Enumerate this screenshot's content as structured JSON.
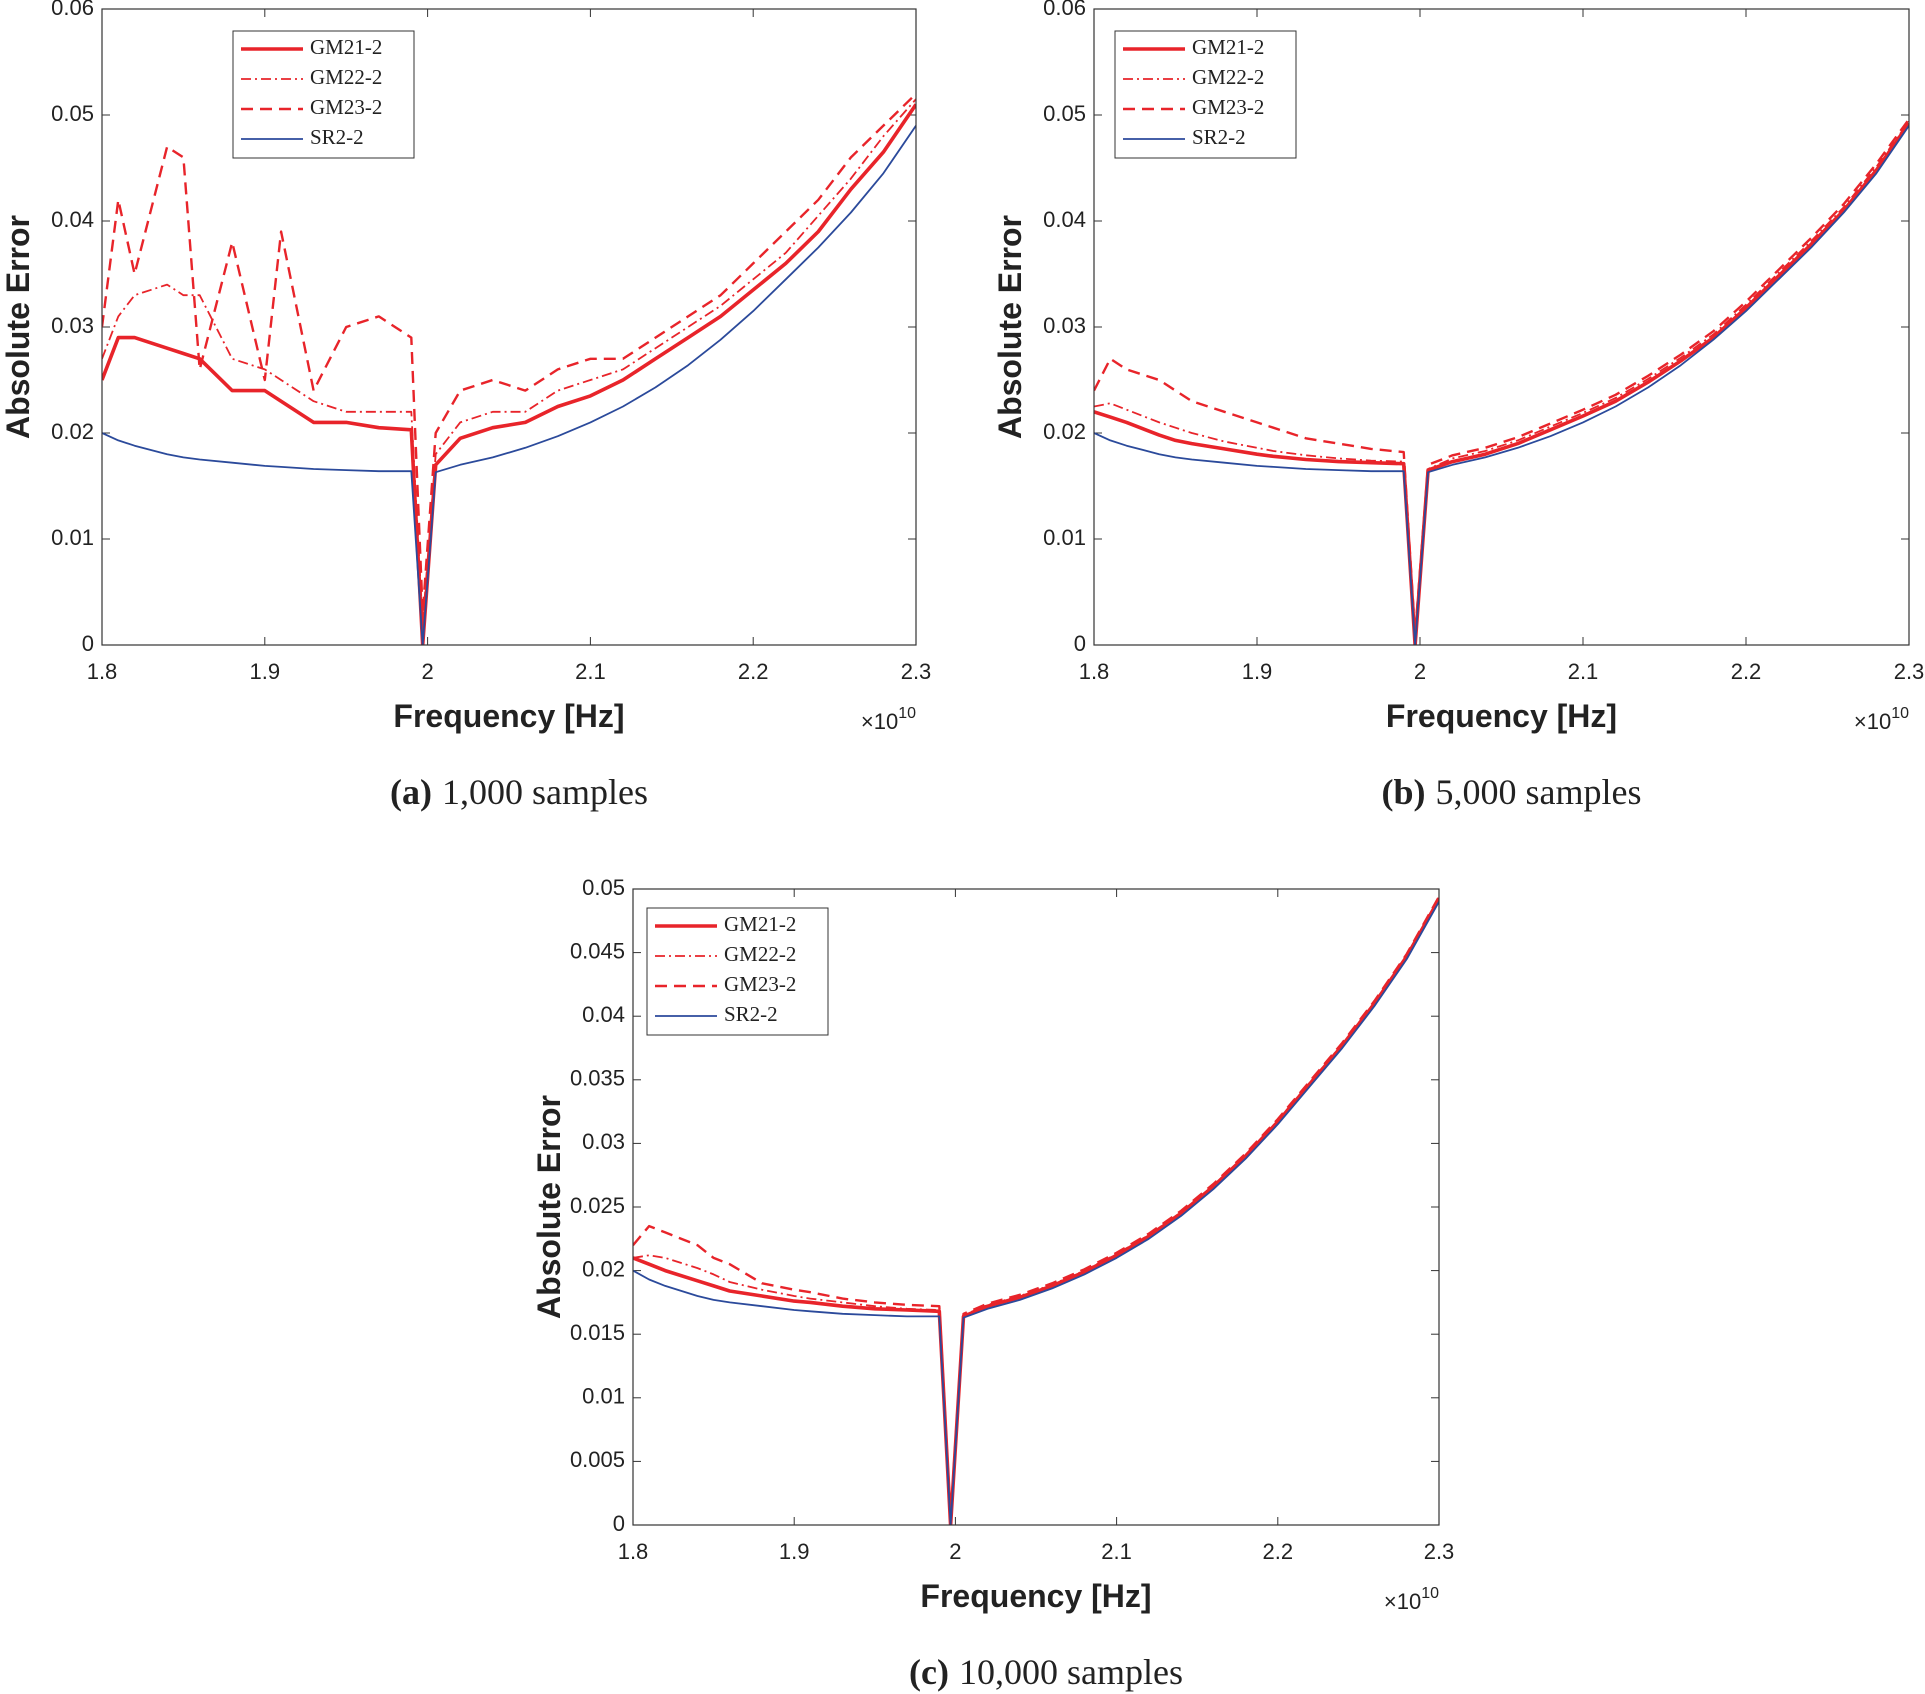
{
  "chart_data": [
    {
      "type": "line",
      "caption_label": "(a)",
      "caption": "1,000 samples",
      "xlabel": "Frequency [Hz]",
      "ylabel": "Absolute Error",
      "x_multiplier": {
        "base": "×10",
        "exponent": "10"
      },
      "xlim": [
        1.8,
        2.3
      ],
      "xticks": [
        1.8,
        1.9,
        2,
        2.1,
        2.2,
        2.3
      ],
      "ylim": [
        0,
        0.06
      ],
      "yticks": [
        0,
        0.01,
        0.02,
        0.03,
        0.04,
        0.05,
        0.06
      ],
      "legend": "upper left",
      "x": [
        1.8,
        1.81,
        1.82,
        1.84,
        1.85,
        1.86,
        1.88,
        1.9,
        1.91,
        1.93,
        1.95,
        1.97,
        1.99,
        1.997,
        2.005,
        2.02,
        2.04,
        2.06,
        2.08,
        2.1,
        2.12,
        2.14,
        2.16,
        2.18,
        2.2,
        2.22,
        2.24,
        2.26,
        2.28,
        2.3
      ],
      "series": [
        {
          "name": "GM21-2",
          "color": "#e8242a",
          "style": "solid",
          "width": 3,
          "values": [
            0.025,
            0.029,
            0.029,
            0.028,
            0.0275,
            0.027,
            0.024,
            0.024,
            0.023,
            0.021,
            0.021,
            0.0205,
            0.0203,
            0,
            0.017,
            0.0195,
            0.0205,
            0.021,
            0.0225,
            0.0235,
            0.025,
            0.027,
            0.029,
            0.031,
            0.0335,
            0.036,
            0.039,
            0.043,
            0.0465,
            0.051
          ]
        },
        {
          "name": "GM22-2",
          "color": "#e8242a",
          "style": "dashdot",
          "width": 1.5,
          "values": [
            0.027,
            0.031,
            0.033,
            0.034,
            0.033,
            0.033,
            0.027,
            0.026,
            0.025,
            0.023,
            0.022,
            0.022,
            0.022,
            0.002,
            0.018,
            0.021,
            0.022,
            0.022,
            0.024,
            0.025,
            0.026,
            0.028,
            0.03,
            0.032,
            0.0345,
            0.037,
            0.0405,
            0.044,
            0.048,
            0.0515
          ]
        },
        {
          "name": "GM23-2",
          "color": "#e8242a",
          "style": "dashed",
          "width": 2,
          "values": [
            0.03,
            0.042,
            0.035,
            0.047,
            0.046,
            0.026,
            0.038,
            0.025,
            0.039,
            0.024,
            0.03,
            0.031,
            0.029,
            0.003,
            0.02,
            0.024,
            0.025,
            0.024,
            0.026,
            0.027,
            0.027,
            0.029,
            0.031,
            0.033,
            0.036,
            0.039,
            0.042,
            0.046,
            0.049,
            0.052
          ]
        },
        {
          "name": "SR2-2",
          "color": "#2b4a9b",
          "style": "solid",
          "width": 1.5,
          "values": [
            0.02,
            0.0193,
            0.0188,
            0.018,
            0.0177,
            0.0175,
            0.0172,
            0.0169,
            0.0168,
            0.0166,
            0.0165,
            0.0164,
            0.0164,
            0,
            0.0163,
            0.017,
            0.0177,
            0.0186,
            0.0197,
            0.021,
            0.0225,
            0.0243,
            0.0264,
            0.0288,
            0.0315,
            0.0345,
            0.0375,
            0.0408,
            0.0445,
            0.049
          ]
        }
      ]
    },
    {
      "type": "line",
      "caption_label": "(b)",
      "caption": "5,000 samples",
      "xlabel": "Frequency [Hz]",
      "ylabel": "Absolute Error",
      "x_multiplier": {
        "base": "×10",
        "exponent": "10"
      },
      "xlim": [
        1.8,
        2.3
      ],
      "xticks": [
        1.8,
        1.9,
        2,
        2.1,
        2.2,
        2.3
      ],
      "ylim": [
        0,
        0.06
      ],
      "yticks": [
        0,
        0.01,
        0.02,
        0.03,
        0.04,
        0.05,
        0.06
      ],
      "legend": "upper left",
      "x": [
        1.8,
        1.81,
        1.82,
        1.84,
        1.85,
        1.86,
        1.88,
        1.9,
        1.91,
        1.93,
        1.95,
        1.97,
        1.99,
        1.997,
        2.005,
        2.02,
        2.04,
        2.06,
        2.08,
        2.1,
        2.12,
        2.14,
        2.16,
        2.18,
        2.2,
        2.22,
        2.24,
        2.26,
        2.28,
        2.3
      ],
      "series": [
        {
          "name": "GM21-2",
          "color": "#e8242a",
          "style": "solid",
          "width": 3,
          "values": [
            0.022,
            0.0215,
            0.021,
            0.0198,
            0.0193,
            0.019,
            0.0185,
            0.018,
            0.0178,
            0.0175,
            0.0173,
            0.0172,
            0.0171,
            0,
            0.0165,
            0.0173,
            0.018,
            0.019,
            0.0203,
            0.0216,
            0.023,
            0.0248,
            0.0268,
            0.029,
            0.0318,
            0.0348,
            0.0378,
            0.041,
            0.0448,
            0.0492
          ]
        },
        {
          "name": "GM22-2",
          "color": "#e8242a",
          "style": "dashdot",
          "width": 1.5,
          "values": [
            0.0225,
            0.0228,
            0.0222,
            0.021,
            0.0205,
            0.02,
            0.0192,
            0.0186,
            0.0183,
            0.0179,
            0.0176,
            0.0174,
            0.0173,
            0.0005,
            0.0166,
            0.0176,
            0.0183,
            0.0193,
            0.0206,
            0.0219,
            0.0233,
            0.0251,
            0.0271,
            0.0293,
            0.0321,
            0.0351,
            0.0381,
            0.0413,
            0.0451,
            0.0494
          ]
        },
        {
          "name": "GM23-2",
          "color": "#e8242a",
          "style": "dashed",
          "width": 2,
          "values": [
            0.024,
            0.027,
            0.026,
            0.025,
            0.024,
            0.023,
            0.022,
            0.021,
            0.0205,
            0.0195,
            0.019,
            0.0185,
            0.0182,
            0.001,
            0.017,
            0.0179,
            0.0186,
            0.0196,
            0.0209,
            0.0222,
            0.0236,
            0.0254,
            0.0274,
            0.0296,
            0.0324,
            0.0354,
            0.0384,
            0.0416,
            0.0454,
            0.0496
          ]
        },
        {
          "name": "SR2-2",
          "color": "#2b4a9b",
          "style": "solid",
          "width": 1.5,
          "values": [
            0.02,
            0.0193,
            0.0188,
            0.018,
            0.0177,
            0.0175,
            0.0172,
            0.0169,
            0.0168,
            0.0166,
            0.0165,
            0.0164,
            0.0164,
            0,
            0.0163,
            0.017,
            0.0177,
            0.0186,
            0.0197,
            0.021,
            0.0225,
            0.0243,
            0.0264,
            0.0288,
            0.0315,
            0.0345,
            0.0375,
            0.0408,
            0.0445,
            0.049
          ]
        }
      ]
    },
    {
      "type": "line",
      "caption_label": "(c)",
      "caption": "10,000 samples",
      "xlabel": "Frequency [Hz]",
      "ylabel": "Absolute Error",
      "x_multiplier": {
        "base": "×10",
        "exponent": "10"
      },
      "xlim": [
        1.8,
        2.3
      ],
      "xticks": [
        1.8,
        1.9,
        2,
        2.1,
        2.2,
        2.3
      ],
      "ylim": [
        0,
        0.05
      ],
      "yticks": [
        0,
        0.005,
        0.01,
        0.015,
        0.02,
        0.025,
        0.03,
        0.035,
        0.04,
        0.045,
        0.05
      ],
      "legend": "upper left",
      "x": [
        1.8,
        1.81,
        1.82,
        1.84,
        1.85,
        1.86,
        1.88,
        1.9,
        1.91,
        1.93,
        1.95,
        1.97,
        1.99,
        1.997,
        2.005,
        2.02,
        2.04,
        2.06,
        2.08,
        2.1,
        2.12,
        2.14,
        2.16,
        2.18,
        2.2,
        2.22,
        2.24,
        2.26,
        2.28,
        2.3
      ],
      "series": [
        {
          "name": "GM21-2",
          "color": "#e8242a",
          "style": "solid",
          "width": 3,
          "values": [
            0.021,
            0.0205,
            0.02,
            0.0192,
            0.0188,
            0.0184,
            0.018,
            0.0176,
            0.0175,
            0.0172,
            0.017,
            0.0169,
            0.0168,
            0,
            0.0164,
            0.0172,
            0.0179,
            0.0188,
            0.0199,
            0.0212,
            0.0227,
            0.0245,
            0.0266,
            0.029,
            0.0317,
            0.0347,
            0.0377,
            0.041,
            0.0447,
            0.0492
          ]
        },
        {
          "name": "GM22-2",
          "color": "#e8242a",
          "style": "dashdot",
          "width": 1.5,
          "values": [
            0.021,
            0.0212,
            0.021,
            0.0202,
            0.0197,
            0.0191,
            0.0185,
            0.018,
            0.0178,
            0.0175,
            0.0172,
            0.017,
            0.0169,
            0.0003,
            0.0165,
            0.0173,
            0.018,
            0.0189,
            0.02,
            0.0213,
            0.0228,
            0.0246,
            0.0267,
            0.0291,
            0.0318,
            0.0348,
            0.0378,
            0.0411,
            0.0448,
            0.0493
          ]
        },
        {
          "name": "GM23-2",
          "color": "#e8242a",
          "style": "dashed",
          "width": 2,
          "values": [
            0.022,
            0.0235,
            0.023,
            0.022,
            0.021,
            0.0205,
            0.019,
            0.0185,
            0.0183,
            0.0178,
            0.0175,
            0.0173,
            0.0172,
            0.0005,
            0.0166,
            0.0174,
            0.0181,
            0.019,
            0.0201,
            0.0214,
            0.0229,
            0.0247,
            0.0268,
            0.0292,
            0.0319,
            0.0349,
            0.0379,
            0.0412,
            0.0449,
            0.0494
          ]
        },
        {
          "name": "SR2-2",
          "color": "#2b4a9b",
          "style": "solid",
          "width": 1.5,
          "values": [
            0.02,
            0.0193,
            0.0188,
            0.018,
            0.0177,
            0.0175,
            0.0172,
            0.0169,
            0.0168,
            0.0166,
            0.0165,
            0.0164,
            0.0164,
            0,
            0.0163,
            0.017,
            0.0177,
            0.0186,
            0.0197,
            0.021,
            0.0225,
            0.0243,
            0.0264,
            0.0288,
            0.0315,
            0.0345,
            0.0375,
            0.0408,
            0.0445,
            0.049
          ]
        }
      ]
    }
  ]
}
